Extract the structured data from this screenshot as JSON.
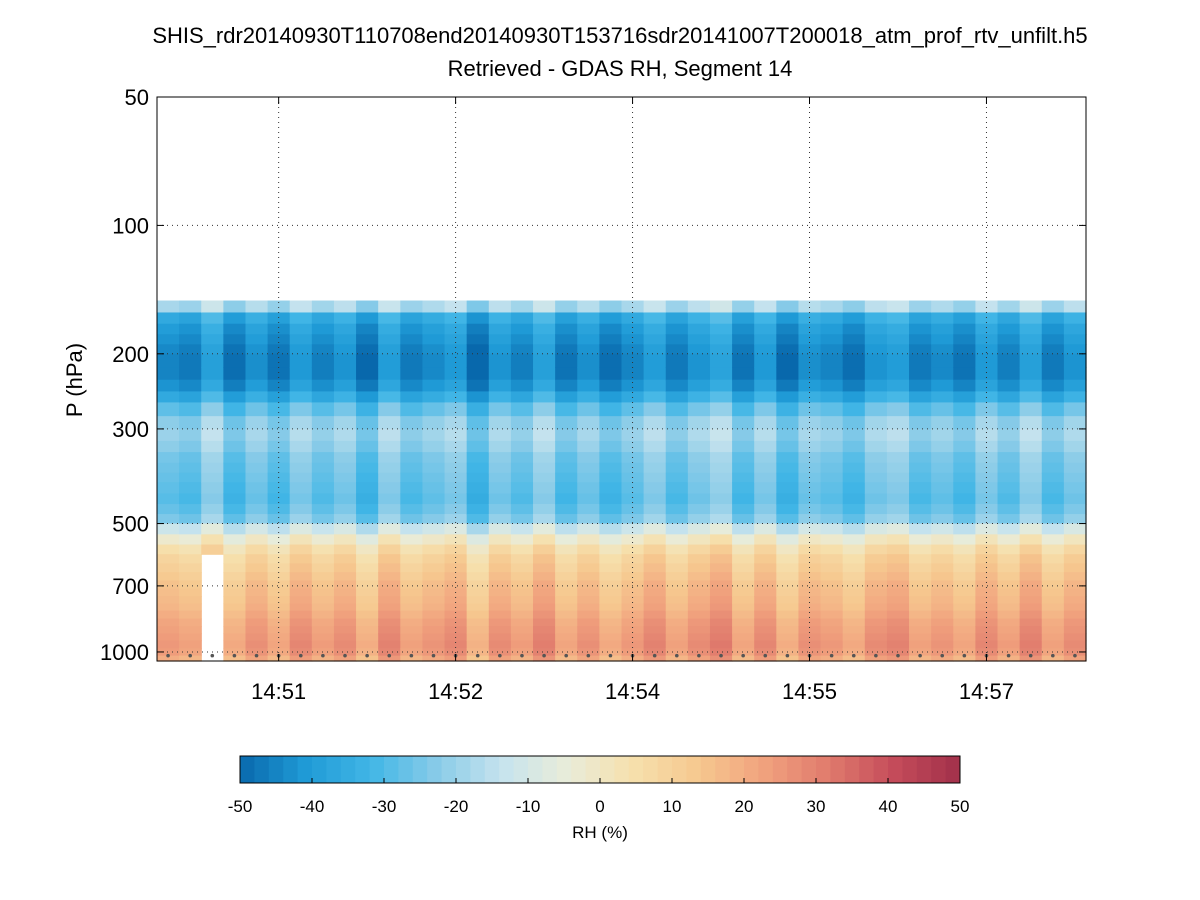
{
  "chart_data": {
    "type": "heatmap",
    "title": "SHIS_rdr20140930T110708end20140930T153716sdr20141007T200018_atm_prof_rtv_unfilt.h5",
    "subtitle": "Retrieved - GDAS RH, Segment 14",
    "ylabel": "P (hPa)",
    "xlabel": "",
    "y_scale": "log",
    "y_reversed": true,
    "ylim": [
      50,
      1050
    ],
    "y_ticks": [
      {
        "value": 50,
        "label": "50"
      },
      {
        "value": 100,
        "label": "100"
      },
      {
        "value": 200,
        "label": "200"
      },
      {
        "value": 300,
        "label": "300"
      },
      {
        "value": 500,
        "label": "500"
      },
      {
        "value": 700,
        "label": "700"
      },
      {
        "value": 1000,
        "label": "1000"
      }
    ],
    "x_ticks": [
      {
        "index": 5.5,
        "label": "14:51"
      },
      {
        "index": 13.5,
        "label": "14:52"
      },
      {
        "index": 21.5,
        "label": "14:54"
      },
      {
        "index": 29.5,
        "label": "14:55"
      },
      {
        "index": 37.5,
        "label": "14:57"
      }
    ],
    "n_columns": 42,
    "pressure_levels": [
      150,
      160,
      170,
      180,
      190,
      200,
      215,
      230,
      245,
      260,
      280,
      300,
      320,
      340,
      360,
      380,
      400,
      425,
      450,
      475,
      500,
      530,
      560,
      590,
      620,
      650,
      680,
      710,
      740,
      770,
      800,
      835,
      870,
      905,
      940,
      980,
      1020,
      1050
    ],
    "profile_template": [
      -18,
      -36,
      -40,
      -42,
      -44,
      -45,
      -45,
      -42,
      -36,
      -28,
      -22,
      -20,
      -22,
      -25,
      -26,
      -27,
      -28,
      -29,
      -27,
      -24,
      -12,
      -2,
      5,
      9,
      11,
      13,
      15,
      16,
      17,
      18,
      20,
      22,
      23,
      24,
      25,
      24,
      20
    ],
    "column_offsets": [
      0,
      -2,
      6,
      -4,
      2,
      -3,
      4,
      -1,
      3,
      -5,
      5,
      -2,
      1,
      4,
      -6,
      3,
      -1,
      6,
      -3,
      2,
      -4,
      0,
      5,
      -2,
      3,
      7,
      -3,
      4,
      -5,
      2,
      0,
      -4,
      3,
      5,
      -2,
      1,
      -3,
      4,
      -1,
      6,
      -2,
      3
    ],
    "missing_columns": [
      2
    ],
    "colorbar": {
      "label": "RH (%)",
      "range": [
        -50,
        50
      ],
      "ticks": [
        "-50",
        "-40",
        "-30",
        "-20",
        "-10",
        "0",
        "10",
        "20",
        "30",
        "40",
        "50"
      ],
      "colors": [
        "#0868ac",
        "#1f9ad6",
        "#41b6e6",
        "#88cbe8",
        "#c6e3ee",
        "#e9ecd9",
        "#f6e0ad",
        "#f6c88f",
        "#f1a27e",
        "#e07a6c",
        "#c44b5a",
        "#a1304a"
      ]
    }
  }
}
